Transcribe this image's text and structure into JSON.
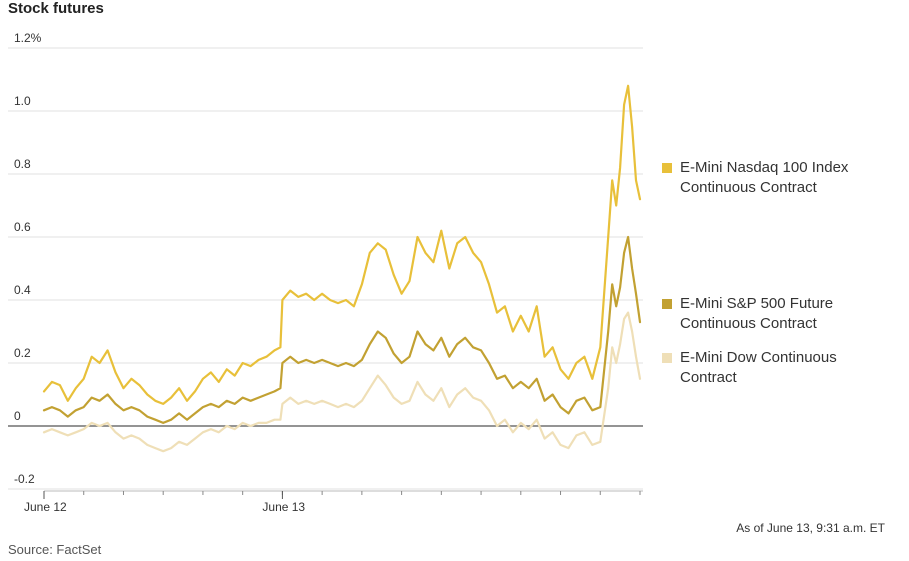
{
  "chart_data": {
    "type": "line",
    "title": "Stock futures",
    "y_ticks": [
      {
        "value": 1.2,
        "label": "1.2%"
      },
      {
        "value": 1.0,
        "label": "1.0"
      },
      {
        "value": 0.8,
        "label": "0.8"
      },
      {
        "value": 0.6,
        "label": "0.6"
      },
      {
        "value": 0.4,
        "label": "0.4"
      },
      {
        "value": 0.2,
        "label": "0.2"
      },
      {
        "value": 0,
        "label": "0"
      },
      {
        "value": -0.2,
        "label": "-0.2"
      }
    ],
    "ylim": [
      -0.2,
      1.2
    ],
    "x_labels": [
      {
        "x": 0,
        "label": "June 12"
      },
      {
        "x": 6,
        "label": "June 13"
      }
    ],
    "xlim": [
      0,
      15
    ],
    "grid": true,
    "legend_position": "right",
    "series": [
      {
        "name": "E-Mini Nasdaq 100 Index Continuous Contract",
        "color": "#e8c03a",
        "x": [
          0,
          0.2,
          0.4,
          0.6,
          0.8,
          1.0,
          1.2,
          1.4,
          1.6,
          1.8,
          2.0,
          2.2,
          2.4,
          2.6,
          2.8,
          3.0,
          3.2,
          3.4,
          3.6,
          3.8,
          4.0,
          4.2,
          4.4,
          4.6,
          4.8,
          5.0,
          5.2,
          5.4,
          5.6,
          5.8,
          5.95,
          6.0,
          6.2,
          6.4,
          6.6,
          6.8,
          7.0,
          7.2,
          7.4,
          7.6,
          7.8,
          8.0,
          8.2,
          8.4,
          8.6,
          8.8,
          9.0,
          9.2,
          9.4,
          9.6,
          9.8,
          10.0,
          10.2,
          10.4,
          10.6,
          10.8,
          11.0,
          11.2,
          11.4,
          11.6,
          11.8,
          12.0,
          12.2,
          12.4,
          12.6,
          12.8,
          13.0,
          13.2,
          13.4,
          13.6,
          13.8,
          14.0,
          14.2,
          14.3,
          14.4,
          14.5,
          14.6,
          14.7,
          14.8,
          14.9,
          15.0
        ],
        "y": [
          0.11,
          0.14,
          0.13,
          0.08,
          0.12,
          0.15,
          0.22,
          0.2,
          0.24,
          0.17,
          0.12,
          0.15,
          0.13,
          0.1,
          0.08,
          0.07,
          0.09,
          0.12,
          0.08,
          0.11,
          0.15,
          0.17,
          0.14,
          0.18,
          0.16,
          0.2,
          0.19,
          0.21,
          0.22,
          0.24,
          0.25,
          0.4,
          0.43,
          0.41,
          0.42,
          0.4,
          0.42,
          0.4,
          0.39,
          0.4,
          0.38,
          0.45,
          0.55,
          0.58,
          0.56,
          0.48,
          0.42,
          0.46,
          0.6,
          0.55,
          0.52,
          0.62,
          0.5,
          0.58,
          0.6,
          0.55,
          0.52,
          0.45,
          0.36,
          0.38,
          0.3,
          0.35,
          0.3,
          0.38,
          0.22,
          0.25,
          0.18,
          0.15,
          0.2,
          0.22,
          0.15,
          0.25,
          0.6,
          0.78,
          0.7,
          0.82,
          1.02,
          1.08,
          0.95,
          0.78,
          0.72
        ]
      },
      {
        "name": "E-Mini S&P 500 Future Continuous Contract",
        "color": "#c2a132",
        "x": [
          0,
          0.2,
          0.4,
          0.6,
          0.8,
          1.0,
          1.2,
          1.4,
          1.6,
          1.8,
          2.0,
          2.2,
          2.4,
          2.6,
          2.8,
          3.0,
          3.2,
          3.4,
          3.6,
          3.8,
          4.0,
          4.2,
          4.4,
          4.6,
          4.8,
          5.0,
          5.2,
          5.4,
          5.6,
          5.8,
          5.95,
          6.0,
          6.2,
          6.4,
          6.6,
          6.8,
          7.0,
          7.2,
          7.4,
          7.6,
          7.8,
          8.0,
          8.2,
          8.4,
          8.6,
          8.8,
          9.0,
          9.2,
          9.4,
          9.6,
          9.8,
          10.0,
          10.2,
          10.4,
          10.6,
          10.8,
          11.0,
          11.2,
          11.4,
          11.6,
          11.8,
          12.0,
          12.2,
          12.4,
          12.6,
          12.8,
          13.0,
          13.2,
          13.4,
          13.6,
          13.8,
          14.0,
          14.2,
          14.3,
          14.4,
          14.5,
          14.6,
          14.7,
          14.8,
          14.9,
          15.0
        ],
        "y": [
          0.05,
          0.06,
          0.05,
          0.03,
          0.05,
          0.06,
          0.09,
          0.08,
          0.1,
          0.07,
          0.05,
          0.06,
          0.05,
          0.03,
          0.02,
          0.01,
          0.02,
          0.04,
          0.02,
          0.04,
          0.06,
          0.07,
          0.06,
          0.08,
          0.07,
          0.09,
          0.08,
          0.09,
          0.1,
          0.11,
          0.12,
          0.2,
          0.22,
          0.2,
          0.21,
          0.2,
          0.21,
          0.2,
          0.19,
          0.2,
          0.19,
          0.21,
          0.26,
          0.3,
          0.28,
          0.23,
          0.2,
          0.22,
          0.3,
          0.26,
          0.24,
          0.28,
          0.22,
          0.26,
          0.28,
          0.25,
          0.24,
          0.2,
          0.15,
          0.16,
          0.12,
          0.14,
          0.12,
          0.15,
          0.08,
          0.1,
          0.06,
          0.04,
          0.08,
          0.09,
          0.05,
          0.06,
          0.3,
          0.45,
          0.38,
          0.44,
          0.55,
          0.6,
          0.5,
          0.42,
          0.33
        ]
      },
      {
        "name": "E-Mini Dow Continuous Contract",
        "color": "#efdfb7",
        "x": [
          0,
          0.2,
          0.4,
          0.6,
          0.8,
          1.0,
          1.2,
          1.4,
          1.6,
          1.8,
          2.0,
          2.2,
          2.4,
          2.6,
          2.8,
          3.0,
          3.2,
          3.4,
          3.6,
          3.8,
          4.0,
          4.2,
          4.4,
          4.6,
          4.8,
          5.0,
          5.2,
          5.4,
          5.6,
          5.8,
          5.95,
          6.0,
          6.2,
          6.4,
          6.6,
          6.8,
          7.0,
          7.2,
          7.4,
          7.6,
          7.8,
          8.0,
          8.2,
          8.4,
          8.6,
          8.8,
          9.0,
          9.2,
          9.4,
          9.6,
          9.8,
          10.0,
          10.2,
          10.4,
          10.6,
          10.8,
          11.0,
          11.2,
          11.4,
          11.6,
          11.8,
          12.0,
          12.2,
          12.4,
          12.6,
          12.8,
          13.0,
          13.2,
          13.4,
          13.6,
          13.8,
          14.0,
          14.2,
          14.3,
          14.4,
          14.5,
          14.6,
          14.7,
          14.8,
          14.9,
          15.0
        ],
        "y": [
          -0.02,
          -0.01,
          -0.02,
          -0.03,
          -0.02,
          -0.01,
          0.01,
          0.0,
          0.01,
          -0.02,
          -0.04,
          -0.03,
          -0.04,
          -0.06,
          -0.07,
          -0.08,
          -0.07,
          -0.05,
          -0.06,
          -0.04,
          -0.02,
          -0.01,
          -0.02,
          0.0,
          -0.01,
          0.01,
          0.0,
          0.01,
          0.01,
          0.02,
          0.02,
          0.07,
          0.09,
          0.07,
          0.08,
          0.07,
          0.08,
          0.07,
          0.06,
          0.07,
          0.06,
          0.08,
          0.12,
          0.16,
          0.13,
          0.09,
          0.07,
          0.08,
          0.14,
          0.1,
          0.08,
          0.12,
          0.06,
          0.1,
          0.12,
          0.09,
          0.08,
          0.05,
          0.0,
          0.02,
          -0.02,
          0.01,
          -0.01,
          0.02,
          -0.04,
          -0.02,
          -0.06,
          -0.07,
          -0.03,
          -0.02,
          -0.06,
          -0.05,
          0.12,
          0.25,
          0.2,
          0.26,
          0.34,
          0.36,
          0.3,
          0.22,
          0.15
        ]
      }
    ]
  },
  "note": "As of June 13, 9:31 a.m. ET",
  "source": "Source: FactSet"
}
